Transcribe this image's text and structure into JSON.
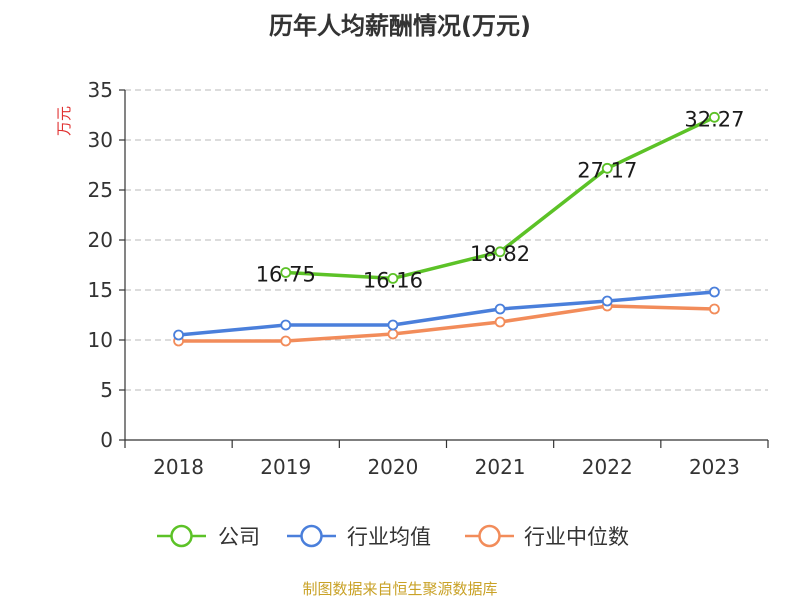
{
  "chart_data": {
    "type": "line",
    "title": "历年人均薪酬情况(万元)",
    "ylabel": "万元",
    "xlabel": "",
    "categories": [
      "2018",
      "2019",
      "2020",
      "2021",
      "2022",
      "2023"
    ],
    "ylim": [
      0,
      35
    ],
    "yticks": [
      0,
      5,
      10,
      15,
      20,
      25,
      30,
      35
    ],
    "grid": true,
    "legend_position": "bottom",
    "series": [
      {
        "name": "公司",
        "color": "#5cc227",
        "values": [
          null,
          16.75,
          16.16,
          18.82,
          27.17,
          32.27
        ],
        "labels": [
          null,
          "16.75",
          "16.16",
          "18.82",
          "27.17",
          "32.27"
        ]
      },
      {
        "name": "行业均值",
        "color": "#4a7fdb",
        "values": [
          10.5,
          11.5,
          11.5,
          13.1,
          13.9,
          14.8
        ],
        "labels": [
          null,
          null,
          null,
          null,
          null,
          null
        ]
      },
      {
        "name": "行业中位数",
        "color": "#f28c5a",
        "values": [
          9.9,
          9.9,
          10.6,
          11.8,
          13.4,
          13.1
        ],
        "labels": [
          null,
          null,
          null,
          null,
          null,
          null
        ]
      }
    ],
    "source": "制图数据来自恒生聚源数据库"
  }
}
